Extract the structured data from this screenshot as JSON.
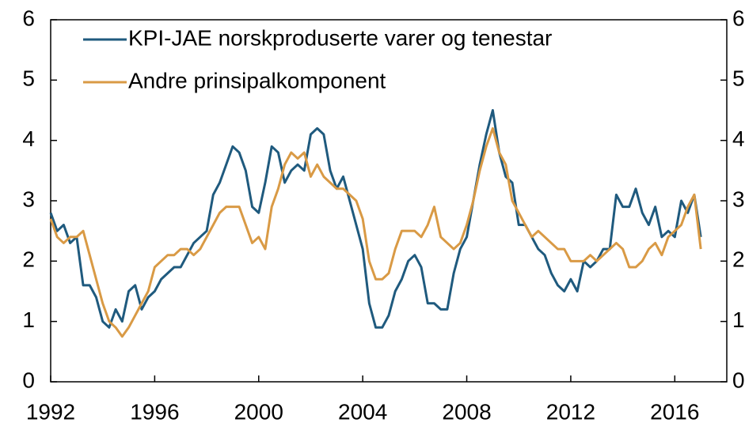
{
  "chart_data": {
    "type": "line",
    "x": [
      1992,
      1992.25,
      1992.5,
      1992.75,
      1993,
      1993.25,
      1993.5,
      1993.75,
      1994,
      1994.25,
      1994.5,
      1994.75,
      1995,
      1995.25,
      1995.5,
      1995.75,
      1996,
      1996.25,
      1996.5,
      1996.75,
      1997,
      1997.25,
      1997.5,
      1997.75,
      1998,
      1998.25,
      1998.5,
      1998.75,
      1999,
      1999.25,
      1999.5,
      1999.75,
      2000,
      2000.25,
      2000.5,
      2000.75,
      2001,
      2001.25,
      2001.5,
      2001.75,
      2002,
      2002.25,
      2002.5,
      2002.75,
      2003,
      2003.25,
      2003.5,
      2003.75,
      2004,
      2004.25,
      2004.5,
      2004.75,
      2005,
      2005.25,
      2005.5,
      2005.75,
      2006,
      2006.25,
      2006.5,
      2006.75,
      2007,
      2007.25,
      2007.5,
      2007.75,
      2008,
      2008.25,
      2008.5,
      2008.75,
      2009,
      2009.25,
      2009.5,
      2009.75,
      2010,
      2010.25,
      2010.5,
      2010.75,
      2011,
      2011.25,
      2011.5,
      2011.75,
      2012,
      2012.25,
      2012.5,
      2012.75,
      2013,
      2013.25,
      2013.5,
      2013.75,
      2014,
      2014.25,
      2014.5,
      2014.75,
      2015,
      2015.25,
      2015.5,
      2015.75,
      2016,
      2016.25,
      2016.5,
      2016.75,
      2017
    ],
    "series": [
      {
        "name": "KPI-JAE norskproduserte varer og tenestar",
        "color": "#1f5a7e",
        "values": [
          2.8,
          2.5,
          2.6,
          2.3,
          2.4,
          1.6,
          1.6,
          1.4,
          1.0,
          0.9,
          1.2,
          1.0,
          1.5,
          1.6,
          1.2,
          1.4,
          1.5,
          1.7,
          1.8,
          1.9,
          1.9,
          2.1,
          2.3,
          2.4,
          2.5,
          3.1,
          3.3,
          3.6,
          3.9,
          3.8,
          3.5,
          2.9,
          2.8,
          3.3,
          3.9,
          3.8,
          3.3,
          3.5,
          3.6,
          3.5,
          4.1,
          4.2,
          4.1,
          3.5,
          3.2,
          3.4,
          3.0,
          2.6,
          2.2,
          1.3,
          0.9,
          0.9,
          1.1,
          1.5,
          1.7,
          2.0,
          2.1,
          1.9,
          1.3,
          1.3,
          1.2,
          1.2,
          1.8,
          2.2,
          2.4,
          3.0,
          3.6,
          4.1,
          4.5,
          3.8,
          3.4,
          3.3,
          2.6,
          2.6,
          2.4,
          2.2,
          2.1,
          1.8,
          1.6,
          1.5,
          1.7,
          1.5,
          2.0,
          1.9,
          2.0,
          2.2,
          2.2,
          3.1,
          2.9,
          2.9,
          3.2,
          2.8,
          2.6,
          2.9,
          2.4,
          2.5,
          2.4,
          3.0,
          2.8,
          3.1,
          2.4
        ]
      },
      {
        "name": "Andre prinsipalkomponent",
        "color": "#d99a45",
        "values": [
          2.7,
          2.4,
          2.3,
          2.4,
          2.4,
          2.5,
          2.1,
          1.7,
          1.3,
          1.0,
          0.9,
          0.75,
          0.9,
          1.1,
          1.3,
          1.5,
          1.9,
          2.0,
          2.1,
          2.1,
          2.2,
          2.2,
          2.1,
          2.2,
          2.4,
          2.6,
          2.8,
          2.9,
          2.9,
          2.9,
          2.6,
          2.3,
          2.4,
          2.2,
          2.9,
          3.2,
          3.6,
          3.8,
          3.7,
          3.8,
          3.4,
          3.6,
          3.4,
          3.3,
          3.2,
          3.2,
          3.1,
          3.0,
          2.7,
          2.0,
          1.7,
          1.7,
          1.8,
          2.2,
          2.5,
          2.5,
          2.5,
          2.4,
          2.6,
          2.9,
          2.4,
          2.3,
          2.2,
          2.3,
          2.6,
          3.0,
          3.5,
          3.9,
          4.2,
          3.8,
          3.6,
          3.0,
          2.8,
          2.6,
          2.4,
          2.5,
          2.4,
          2.3,
          2.2,
          2.2,
          2.0,
          2.0,
          2.0,
          2.1,
          2.0,
          2.1,
          2.2,
          2.3,
          2.2,
          1.9,
          1.9,
          2.0,
          2.2,
          2.3,
          2.1,
          2.4,
          2.5,
          2.6,
          2.9,
          3.1,
          2.2
        ]
      }
    ],
    "xlim": [
      1992,
      2018
    ],
    "xticks": [
      1992,
      1996,
      2000,
      2004,
      2008,
      2012,
      2016
    ],
    "ylim": [
      0,
      6
    ],
    "yticks": [
      0,
      1,
      2,
      3,
      4,
      5,
      6
    ],
    "y2lim": [
      0,
      6
    ],
    "y2ticks": [
      0,
      1,
      2,
      3,
      4,
      5,
      6
    ],
    "legend": "upper-left"
  }
}
